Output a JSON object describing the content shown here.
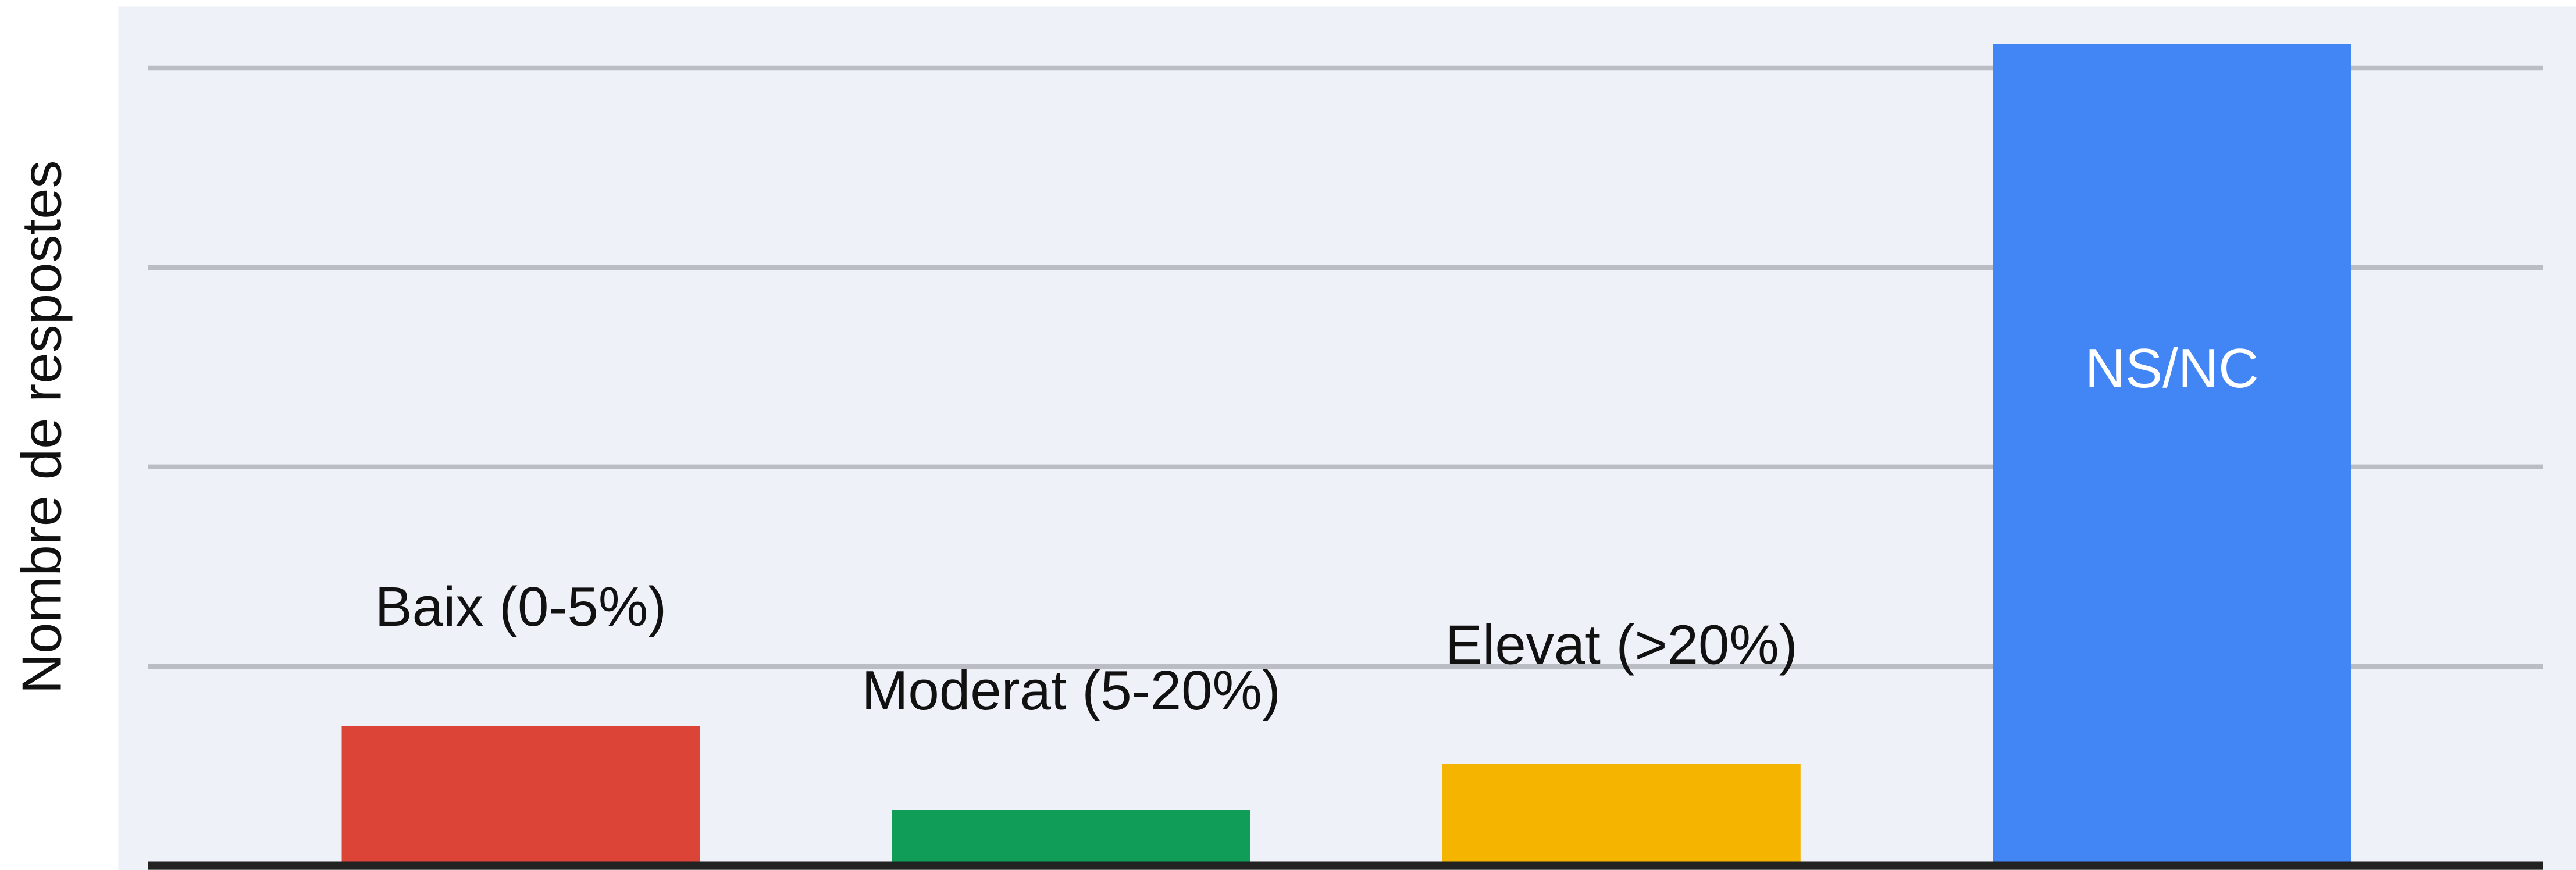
{
  "chart_data": {
    "type": "bar",
    "y_label": "Nombre de respostes",
    "categories": [
      "Baix (0-5%)",
      "Moderat (5-20%)",
      "Elevat (>20%)",
      "NS/NC"
    ],
    "values": [
      0.7,
      0.28,
      0.51,
      4.12
    ],
    "colors": [
      "#db4437",
      "#0f9d58",
      "#f4b400",
      "#4285f4"
    ],
    "ylim": [
      0,
      4.3
    ],
    "yticks": [
      0,
      1,
      2,
      3,
      4
    ],
    "grid": true
  }
}
